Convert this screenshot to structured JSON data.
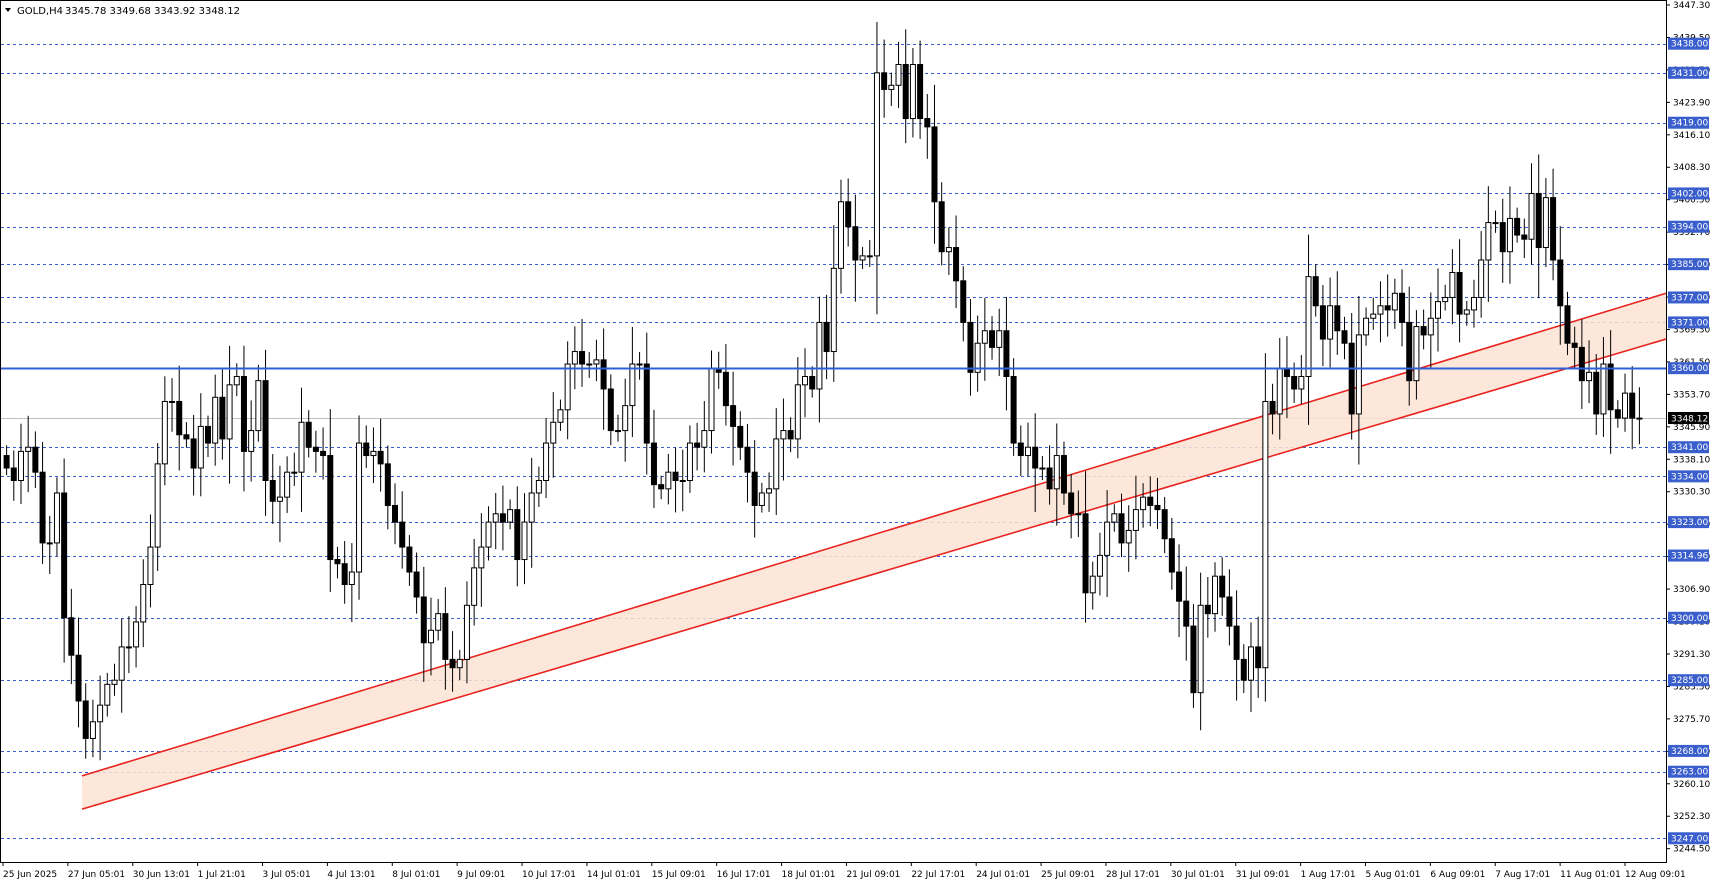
{
  "header": {
    "symbol_timeframe": "GOLD,H4",
    "ohlc": "3345.78 3349.68 3343.92 3348.12"
  },
  "current_price": "3348.12",
  "colors": {
    "level_line": "#3a5fcd",
    "main_line": "#2f5fd6",
    "channel_stroke": "#e8231f",
    "channel_fill": "#fbe3d3",
    "candle": "#000000",
    "tag_bg": "#3a5fcd",
    "current_price_bg": "#000000"
  },
  "chart_data": {
    "type": "candlestick",
    "y_range": [
      3243.7,
      3447.3
    ],
    "y_ticks": [
      "3447.30",
      "3439.50",
      "3431.70",
      "3423.90",
      "3416.10",
      "3408.30",
      "3400.50",
      "3392.70",
      "3384.90",
      "3377.10",
      "3369.30",
      "3361.50",
      "3353.70",
      "3345.90",
      "3338.10",
      "3330.30",
      "3322.50",
      "3314.70",
      "3306.90",
      "3299.10",
      "3291.30",
      "3283.50",
      "3275.70",
      "3267.90",
      "3260.10",
      "3252.30",
      "3244.50"
    ],
    "x_ticks": [
      "25 Jun 2025",
      "27 Jun 05:01",
      "30 Jun 13:01",
      "1 Jul 21:01",
      "3 Jul 05:01",
      "4 Jul 13:01",
      "8 Jul 01:01",
      "9 Jul 09:01",
      "10 Jul 17:01",
      "14 Jul 01:01",
      "15 Jul 09:01",
      "16 Jul 17:01",
      "18 Jul 01:01",
      "21 Jul 09:01",
      "22 Jul 17:01",
      "24 Jul 01:01",
      "25 Jul 09:01",
      "28 Jul 17:01",
      "30 Jul 01:01",
      "31 Jul 09:01",
      "1 Aug 17:01",
      "5 Aug 01:01",
      "6 Aug 09:01",
      "7 Aug 17:01",
      "11 Aug 01:01",
      "12 Aug 09:01"
    ],
    "levels": [
      "3438.00",
      "3431.00",
      "3419.00",
      "3402.00",
      "3394.00",
      "3385.00",
      "3377.00",
      "3371.00",
      "3341.00",
      "3334.00",
      "3323.00",
      "3314.96",
      "3300.00",
      "3285.00",
      "3268.00",
      "3263.00",
      "3247.00"
    ],
    "main_level": "3360.00",
    "channel": {
      "upper": {
        "start": 3262,
        "end": 3378
      },
      "lower": {
        "start": 3254,
        "end": 3367
      }
    },
    "closes": [
      3336,
      3333,
      3340,
      3341,
      3335,
      3318,
      3318,
      3330,
      3300,
      3291,
      3280,
      3271,
      3275,
      3279,
      3284,
      3285,
      3293,
      3293,
      3299,
      3308,
      3317,
      3337,
      3352,
      3352,
      3344,
      3343,
      3336,
      3346,
      3342,
      3353,
      3343,
      3356,
      3358,
      3340,
      3345,
      3357,
      3333,
      3328,
      3329,
      3335,
      3335,
      3347,
      3341,
      3340,
      3339,
      3314,
      3313,
      3308,
      3311,
      3342,
      3339,
      3340,
      3337,
      3327,
      3323,
      3317,
      3311,
      3305,
      3294,
      3297,
      3301,
      3290,
      3288,
      3290,
      3303,
      3312,
      3317,
      3323,
      3325,
      3323,
      3326,
      3314,
      3323,
      3330,
      3333,
      3342,
      3347,
      3350,
      3361,
      3364,
      3361,
      3361,
      3362,
      3355,
      3345,
      3345,
      3351,
      3361,
      3361,
      3342,
      3332,
      3331,
      3335,
      3333,
      3333,
      3342,
      3341,
      3345,
      3360,
      3359,
      3351,
      3346,
      3341,
      3335,
      3327,
      3330,
      3331,
      3343,
      3345,
      3343,
      3356,
      3358,
      3355,
      3371,
      3364,
      3384,
      3400,
      3394,
      3386,
      3387,
      3387,
      3431,
      3427,
      3428,
      3433,
      3420,
      3433,
      3420,
      3418,
      3400,
      3388,
      3389,
      3381,
      3371,
      3359,
      3366,
      3369,
      3365,
      3369,
      3358,
      3342,
      3339,
      3341,
      3336,
      3336,
      3331,
      3339,
      3330,
      3325,
      3325,
      3306,
      3310,
      3315,
      3323,
      3325,
      3318,
      3321,
      3326,
      3329,
      3327,
      3326,
      3319,
      3311,
      3304,
      3298,
      3282,
      3303,
      3301,
      3310,
      3305,
      3298,
      3290,
      3285,
      3293,
      3288,
      3352,
      3349,
      3360,
      3358,
      3355,
      3358,
      3382,
      3375,
      3367,
      3375,
      3369,
      3366,
      3349,
      3368,
      3372,
      3373,
      3375,
      3374,
      3378,
      3371,
      3357,
      3370,
      3368,
      3372,
      3376,
      3377,
      3383,
      3373,
      3374,
      3377,
      3386,
      3395,
      3395,
      3388,
      3396,
      3392,
      3391,
      3402,
      3389,
      3401,
      3386,
      3375,
      3366,
      3365,
      3357,
      3359,
      3349,
      3361,
      3350,
      3348,
      3354,
      3348,
      3348
    ]
  }
}
